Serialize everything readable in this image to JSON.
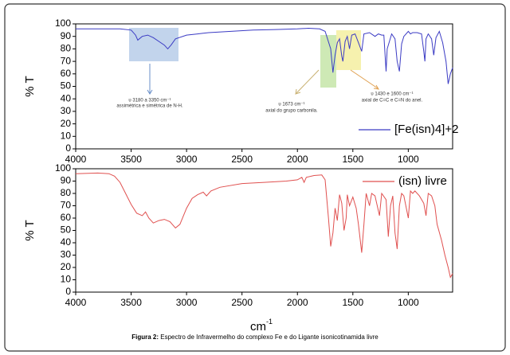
{
  "caption": {
    "bold": "Figura 2:",
    "text": "Espectro de Infravermelho do complexo Fe e do Ligante isonicotinamida livre"
  },
  "annotations": [
    {
      "lines": [
        "υ 3180 a 3350 cm⁻¹",
        "assimétrica e simétrica de N-H."
      ]
    },
    {
      "lines": [
        "υ 1673 cm⁻¹",
        "axial do grupo carbonila."
      ]
    },
    {
      "lines": [
        "υ 1430 e 1600 cm⁻¹",
        "axial de C=C e C=N  do anel."
      ]
    }
  ],
  "chart_data": [
    {
      "type": "line",
      "ylabel": "% T",
      "xlim": [
        4000,
        600
      ],
      "ylim": [
        0,
        100
      ],
      "xticks": [
        4000,
        3500,
        3000,
        2500,
        2000,
        1500,
        1000
      ],
      "yticks": [
        0,
        10,
        20,
        30,
        40,
        50,
        60,
        70,
        80,
        90,
        100
      ],
      "legend": "lower right",
      "series": [
        {
          "name": "[Fe(isn)4]+2",
          "color": "#3b3bc4",
          "x": [
            4000,
            3800,
            3600,
            3500,
            3460,
            3440,
            3400,
            3350,
            3300,
            3250,
            3200,
            3170,
            3140,
            3100,
            3000,
            2900,
            2800,
            2600,
            2400,
            2200,
            2000,
            1900,
            1800,
            1750,
            1700,
            1680,
            1660,
            1640,
            1620,
            1600,
            1590,
            1570,
            1550,
            1530,
            1510,
            1480,
            1450,
            1420,
            1400,
            1350,
            1300,
            1270,
            1240,
            1220,
            1200,
            1190,
            1150,
            1120,
            1100,
            1080,
            1060,
            1040,
            1000,
            980,
            960,
            920,
            880,
            860,
            850,
            840,
            820,
            790,
            770,
            750,
            720,
            690,
            660,
            640,
            620,
            600
          ],
          "values": [
            96,
            96,
            96,
            95,
            91,
            87,
            90,
            91,
            89,
            86,
            83,
            80,
            83,
            88,
            91,
            92,
            93,
            94,
            95,
            95.5,
            96,
            96.5,
            96,
            94,
            80,
            61,
            75,
            85,
            88,
            74,
            70,
            86,
            90,
            80,
            91,
            92,
            85,
            78,
            92,
            93,
            90,
            92,
            91,
            91,
            62,
            80,
            92,
            88,
            70,
            62,
            84,
            90,
            94,
            92,
            93,
            93,
            92,
            78,
            70,
            88,
            92,
            88,
            75,
            89,
            94,
            85,
            70,
            52,
            60,
            65
          ]
        }
      ]
    },
    {
      "type": "line",
      "ylabel": "% T",
      "xlabel": "cm",
      "xlabel_sup": "-1",
      "xlim": [
        4000,
        600
      ],
      "ylim": [
        0,
        100
      ],
      "xticks": [
        4000,
        3500,
        3000,
        2500,
        2000,
        1500,
        1000
      ],
      "yticks": [
        0,
        10,
        20,
        30,
        40,
        50,
        60,
        70,
        80,
        90,
        100
      ],
      "legend": "upper right",
      "series": [
        {
          "name": "(isn) livre",
          "color": "#e0504f",
          "x": [
            4000,
            3800,
            3700,
            3650,
            3600,
            3550,
            3500,
            3450,
            3400,
            3370,
            3340,
            3300,
            3250,
            3200,
            3150,
            3100,
            3060,
            3000,
            2950,
            2900,
            2850,
            2820,
            2780,
            2700,
            2500,
            2300,
            2100,
            2000,
            1960,
            1940,
            1920,
            1850,
            1780,
            1750,
            1720,
            1700,
            1680,
            1660,
            1640,
            1620,
            1600,
            1580,
            1560,
            1550,
            1530,
            1500,
            1470,
            1450,
            1420,
            1400,
            1380,
            1350,
            1330,
            1300,
            1260,
            1240,
            1200,
            1180,
            1160,
            1140,
            1120,
            1100,
            1080,
            1060,
            1040,
            1000,
            980,
            960,
            940,
            900,
            860,
            840,
            820,
            790,
            760,
            740,
            700,
            670,
            640,
            620,
            600
          ],
          "values": [
            96,
            96.5,
            96,
            94,
            89,
            80,
            71,
            64,
            62,
            65,
            60,
            56,
            58,
            59,
            57,
            52,
            55,
            68,
            76,
            79,
            81,
            78,
            82,
            85,
            88,
            89,
            90,
            91,
            93,
            89,
            93,
            94.5,
            95,
            91,
            60,
            37,
            48,
            68,
            58,
            79,
            72,
            50,
            60,
            79,
            70,
            77,
            68,
            55,
            32,
            55,
            80,
            70,
            80,
            78,
            62,
            80,
            75,
            45,
            70,
            78,
            48,
            35,
            70,
            80,
            78,
            60,
            82,
            80,
            82,
            78,
            72,
            62,
            80,
            78,
            70,
            55,
            42,
            30,
            20,
            12,
            15
          ]
        }
      ]
    }
  ]
}
